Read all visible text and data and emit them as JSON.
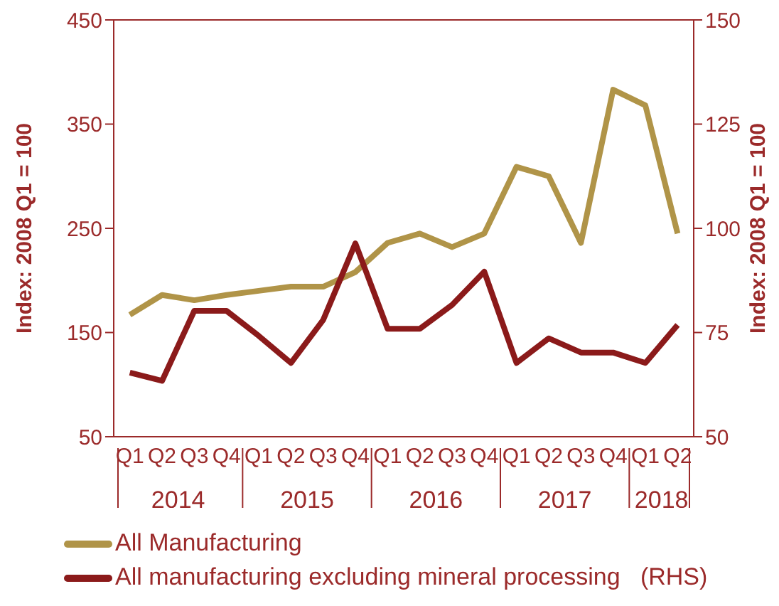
{
  "chart_data": {
    "type": "line",
    "categories": [
      "Q1",
      "Q2",
      "Q3",
      "Q4",
      "Q1",
      "Q2",
      "Q3",
      "Q4",
      "Q1",
      "Q2",
      "Q3",
      "Q4",
      "Q1",
      "Q2",
      "Q3",
      "Q4",
      "Q1",
      "Q2"
    ],
    "annotations": [
      "2014",
      "2015",
      "2016",
      "2017",
      "2018"
    ],
    "series": [
      {
        "name": "All Manufacturing",
        "color": "#b09448",
        "values": [
          167,
          186,
          181,
          186,
          190,
          194,
          194,
          208,
          236,
          245,
          232,
          245,
          309,
          300,
          236,
          383,
          368,
          245
        ]
      },
      {
        "name": "All manufacturing excluding mineral processing   (RHS)",
        "color": "#8b1a1a",
        "axis": "y2",
        "values": [
          65.4,
          63.4,
          80.2,
          80.2,
          74.2,
          67.7,
          78,
          96.4,
          75.9,
          75.9,
          81.6,
          89.6,
          67.7,
          73.6,
          70.2,
          70.2,
          67.7,
          76.8
        ]
      }
    ],
    "ylabel": "Index: 2008 Q1 = 100",
    "y2label": "Index: 2008 Q1 = 100",
    "ylim": [
      50,
      450
    ],
    "yticks": [
      50,
      150,
      250,
      350,
      450
    ],
    "y2lim": [
      50,
      150
    ],
    "y2ticks": [
      50,
      75,
      100,
      125,
      150
    ],
    "grid": false,
    "legend": "bottom left",
    "line_style": "solid",
    "marker": "none"
  }
}
